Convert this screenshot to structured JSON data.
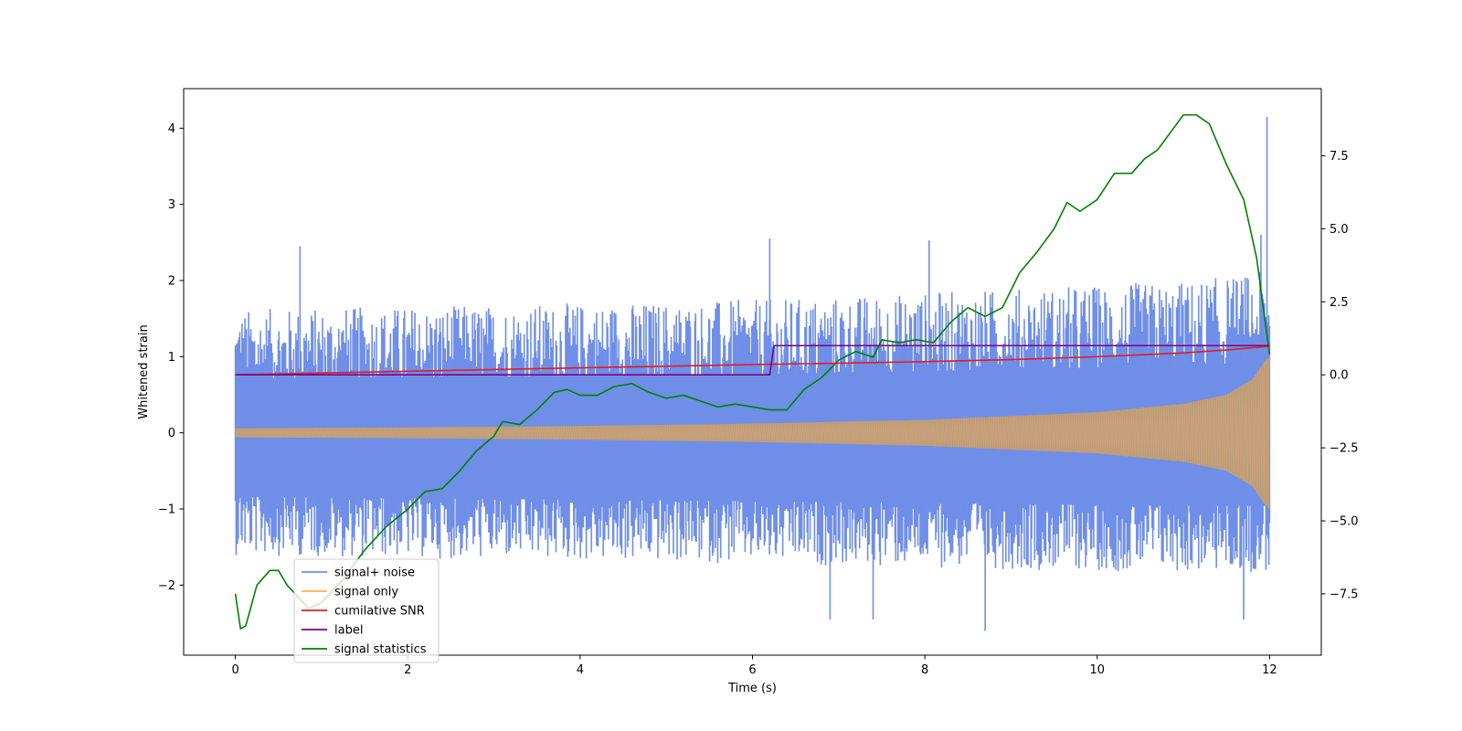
{
  "chart_data": {
    "type": "line",
    "title": "",
    "xlabel": "Time (s)",
    "ylabel": "Whitened strain",
    "y2label": "",
    "xlim": [
      -0.6,
      12.6
    ],
    "ylim": [
      -2.92,
      4.52
    ],
    "y2lim": [
      -9.6,
      9.8
    ],
    "x_ticks": [
      0,
      2,
      4,
      6,
      8,
      10,
      12
    ],
    "x_tick_labels": [
      "0",
      "2",
      "4",
      "6",
      "8",
      "10",
      "12"
    ],
    "y_ticks": [
      -2,
      -1,
      0,
      1,
      2,
      3,
      4
    ],
    "y_tick_labels": [
      "−2",
      "−1",
      "0",
      "1",
      "2",
      "3",
      "4"
    ],
    "y2_ticks": [
      -7.5,
      -5.0,
      -2.5,
      0.0,
      2.5,
      5.0,
      7.5
    ],
    "y2_tick_labels": [
      "−7.5",
      "−5.0",
      "−2.5",
      "0.0",
      "2.5",
      "5.0",
      "7.5"
    ],
    "grid": false,
    "legend_position": "lower-left",
    "legend": [
      "signal+ noise",
      "signal only",
      "cumilative SNR",
      "label",
      "signal statistics"
    ],
    "series": [
      {
        "name": "signal+ noise",
        "axis": "left",
        "color": "#6f8ee8",
        "description_x_range": [
          0,
          12
        ],
        "band_upper_approx": [
          [
            0,
            1.3
          ],
          [
            6,
            1.4
          ],
          [
            11,
            1.6
          ],
          [
            12,
            1.7
          ]
        ],
        "band_lower_approx": [
          [
            0,
            -1.4
          ],
          [
            6,
            -1.5
          ],
          [
            11,
            -1.6
          ],
          [
            12,
            -1.6
          ]
        ],
        "spikes": [
          [
            0.75,
            2.45
          ],
          [
            6.2,
            2.55
          ],
          [
            8.05,
            2.53
          ],
          [
            11.9,
            2.6
          ],
          [
            11.97,
            4.15
          ],
          [
            8.7,
            -2.6
          ],
          [
            7.4,
            -2.45
          ],
          [
            6.9,
            -2.45
          ],
          [
            11.7,
            -2.45
          ]
        ]
      },
      {
        "name": "signal only",
        "axis": "left",
        "color": "#ffb347",
        "envelope": [
          [
            0,
            0.06
          ],
          [
            2,
            0.07
          ],
          [
            4,
            0.09
          ],
          [
            6,
            0.12
          ],
          [
            8,
            0.17
          ],
          [
            10,
            0.27
          ],
          [
            11,
            0.38
          ],
          [
            11.5,
            0.5
          ],
          [
            11.8,
            0.7
          ],
          [
            11.95,
            0.95
          ],
          [
            12,
            1.0
          ]
        ]
      },
      {
        "name": "cumilative SNR",
        "axis": "right",
        "color": "#e31a1c",
        "points": [
          [
            0,
            0.0
          ],
          [
            2,
            0.12
          ],
          [
            4,
            0.24
          ],
          [
            6,
            0.35
          ],
          [
            8,
            0.45
          ],
          [
            9,
            0.52
          ],
          [
            10,
            0.62
          ],
          [
            11,
            0.75
          ],
          [
            11.5,
            0.85
          ],
          [
            12,
            0.98
          ]
        ]
      },
      {
        "name": "label",
        "axis": "right",
        "color": "#800080",
        "points": [
          [
            0,
            0.0
          ],
          [
            6.2,
            0.0
          ],
          [
            6.25,
            1.0
          ],
          [
            12,
            1.0
          ]
        ]
      },
      {
        "name": "signal statistics",
        "axis": "right",
        "color": "#008000",
        "points": [
          [
            0,
            -7.5
          ],
          [
            0.06,
            -8.7
          ],
          [
            0.12,
            -8.6
          ],
          [
            0.25,
            -7.2
          ],
          [
            0.4,
            -6.7
          ],
          [
            0.5,
            -6.7
          ],
          [
            0.6,
            -7.2
          ],
          [
            0.85,
            -8.0
          ],
          [
            1.0,
            -7.8
          ],
          [
            1.25,
            -7.0
          ],
          [
            1.5,
            -6.0
          ],
          [
            1.75,
            -5.2
          ],
          [
            2.0,
            -4.6
          ],
          [
            2.2,
            -4.0
          ],
          [
            2.4,
            -3.9
          ],
          [
            2.6,
            -3.3
          ],
          [
            2.8,
            -2.6
          ],
          [
            3.0,
            -2.1
          ],
          [
            3.1,
            -1.6
          ],
          [
            3.3,
            -1.7
          ],
          [
            3.5,
            -1.2
          ],
          [
            3.7,
            -0.6
          ],
          [
            3.85,
            -0.5
          ],
          [
            4.0,
            -0.7
          ],
          [
            4.2,
            -0.7
          ],
          [
            4.4,
            -0.4
          ],
          [
            4.6,
            -0.3
          ],
          [
            4.8,
            -0.6
          ],
          [
            5.0,
            -0.8
          ],
          [
            5.2,
            -0.7
          ],
          [
            5.4,
            -0.9
          ],
          [
            5.6,
            -1.1
          ],
          [
            5.8,
            -1.0
          ],
          [
            6.0,
            -1.1
          ],
          [
            6.2,
            -1.2
          ],
          [
            6.4,
            -1.2
          ],
          [
            6.6,
            -0.5
          ],
          [
            6.8,
            -0.1
          ],
          [
            7.0,
            0.5
          ],
          [
            7.2,
            0.8
          ],
          [
            7.4,
            0.6
          ],
          [
            7.5,
            1.2
          ],
          [
            7.7,
            1.1
          ],
          [
            7.9,
            1.2
          ],
          [
            8.1,
            1.1
          ],
          [
            8.3,
            1.8
          ],
          [
            8.5,
            2.3
          ],
          [
            8.7,
            2.0
          ],
          [
            8.9,
            2.3
          ],
          [
            9.1,
            3.5
          ],
          [
            9.3,
            4.2
          ],
          [
            9.5,
            5.0
          ],
          [
            9.65,
            5.9
          ],
          [
            9.8,
            5.6
          ],
          [
            10.0,
            6.0
          ],
          [
            10.2,
            6.9
          ],
          [
            10.4,
            6.9
          ],
          [
            10.55,
            7.4
          ],
          [
            10.7,
            7.7
          ],
          [
            10.85,
            8.3
          ],
          [
            11.0,
            8.9
          ],
          [
            11.15,
            8.9
          ],
          [
            11.3,
            8.6
          ],
          [
            11.5,
            7.2
          ],
          [
            11.7,
            6.0
          ],
          [
            11.85,
            4.0
          ],
          [
            12.0,
            0.7
          ]
        ]
      }
    ]
  },
  "colors": {
    "axes_edge": "#000000",
    "noise": "#6f8ee8",
    "signal": "#ffb347",
    "snr": "#e31a1c",
    "label": "#800080",
    "stat": "#008000"
  }
}
